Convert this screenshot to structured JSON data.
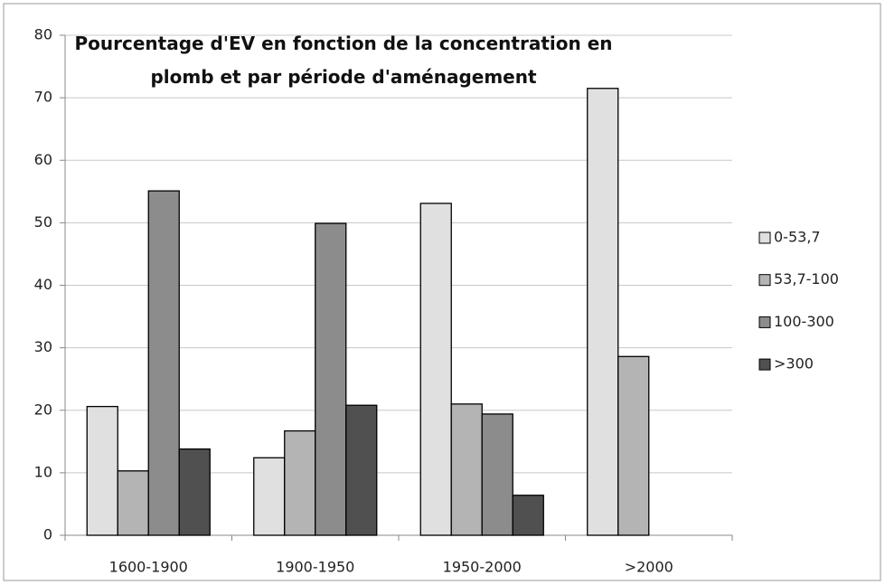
{
  "chart_data": {
    "type": "bar",
    "title": "Pourcentage d'EV en fonction de la concentration en plomb et par période d'aménagement",
    "categories": [
      "1600-1900",
      "1900-1950",
      "1950-2000",
      ">2000"
    ],
    "series": [
      {
        "name": "0-53,7",
        "color": "#e0e0e0",
        "values": [
          20.6,
          12.4,
          53.1,
          71.5
        ]
      },
      {
        "name": "53,7-100",
        "color": "#b4b4b4",
        "values": [
          10.3,
          16.7,
          21.0,
          28.6
        ]
      },
      {
        "name": "100-300",
        "color": "#8c8c8c",
        "values": [
          55.1,
          49.9,
          19.4,
          0
        ]
      },
      {
        "name": ">300",
        "color": "#505050",
        "values": [
          13.8,
          20.8,
          6.4,
          0
        ]
      }
    ],
    "ylim": [
      0,
      80
    ],
    "yticks": [
      0,
      10,
      20,
      30,
      40,
      50,
      60,
      70,
      80
    ],
    "grid": true,
    "legend": "right"
  }
}
